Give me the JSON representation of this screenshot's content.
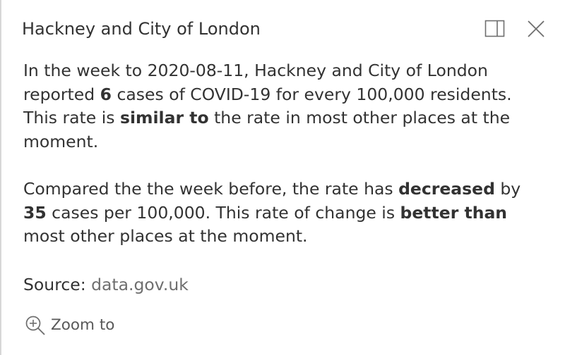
{
  "popup": {
    "title": "Hackney and City of London",
    "dock_icon": "dock-side-icon",
    "close_icon": "close-icon"
  },
  "paragraph1": {
    "t1": "In the week to 2020-08-11, Hackney and City of London reported ",
    "cases": "6",
    "t2": " cases of COVID-19 for every 100,000 residents. This rate is ",
    "comparison": "similar to",
    "t3": " the rate in most other places at the moment."
  },
  "paragraph2": {
    "t1": "Compared the the week before, the rate has ",
    "direction": "decreased",
    "t2": " by ",
    "change": "35",
    "t3": " cases per 100,000. This rate of change is ",
    "change_comparison": "better than",
    "t4": " most other places at the moment."
  },
  "source": {
    "label": "Source: ",
    "link_text": "data.gov.uk"
  },
  "actions": {
    "zoom_icon": "zoom-in-magnifier-icon",
    "zoom_label": "Zoom to"
  }
}
